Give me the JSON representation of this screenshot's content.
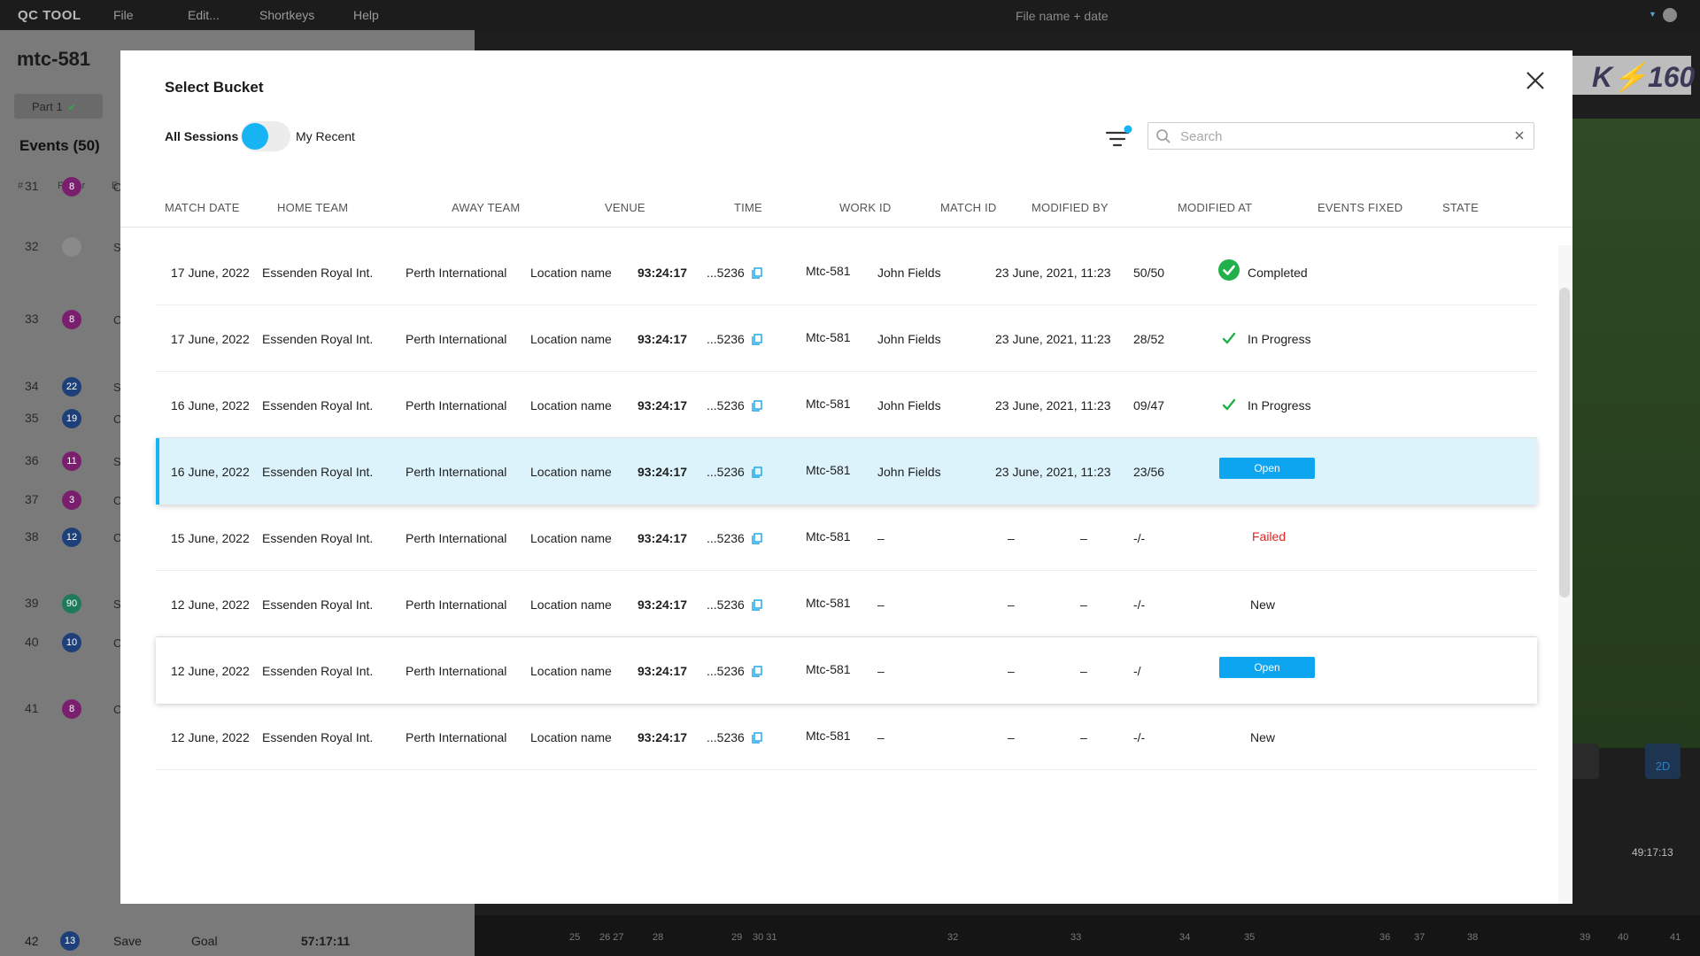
{
  "appbar": {
    "brand": "QC TOOL",
    "menu": [
      "File",
      "Edit...",
      "Shortkeys",
      "Help"
    ],
    "filename": "File name + date"
  },
  "left_panel": {
    "session_title": "mtc-581",
    "tab_label": "Part 1",
    "events_title": "Events (50)",
    "col_hash": "#",
    "col_player": "Player",
    "col_ev": "E",
    "events": [
      {
        "num": "31",
        "badge": "8",
        "color": "#7a1f6e",
        "stub": "C"
      },
      {
        "num": "32",
        "badge": "",
        "color": "#8a8a8a",
        "stub": "S"
      },
      {
        "num": "33",
        "badge": "8",
        "color": "#7a1f6e",
        "stub": "C"
      },
      {
        "num": "34",
        "badge": "22",
        "color": "#1d3f7a",
        "stub": "S"
      },
      {
        "num": "35",
        "badge": "19",
        "color": "#1d3f7a",
        "stub": "C"
      },
      {
        "num": "36",
        "badge": "11",
        "color": "#7a1f6e",
        "stub": "S"
      },
      {
        "num": "37",
        "badge": "3",
        "color": "#7a1f6e",
        "stub": "C"
      },
      {
        "num": "38",
        "badge": "12",
        "color": "#1d3f7a",
        "stub": "C"
      },
      {
        "num": "39",
        "badge": "90",
        "color": "#1f7a5a",
        "stub": "S"
      },
      {
        "num": "40",
        "badge": "10",
        "color": "#1d3f7a",
        "stub": "C"
      },
      {
        "num": "41",
        "badge": "8",
        "color": "#7a1f6e",
        "stub": "C"
      }
    ],
    "last_event": {
      "num": "42",
      "badge": "13",
      "color": "#1d3f7a",
      "type": "Save",
      "outcome": "Goal",
      "time": "57:17:11"
    }
  },
  "video": {
    "logo_text": "K⚡160",
    "timecode": "49:17:13",
    "timeline_ticks": [
      "25",
      "26 27",
      "28",
      "29",
      "30 31",
      "32",
      "33",
      "34",
      "35",
      "36",
      "37",
      "38",
      "39",
      "40",
      "41"
    ],
    "mode_label": "2D"
  },
  "modal": {
    "title": "Select Bucket",
    "toggle_left": "All Sessions",
    "toggle_right": "My Recent",
    "search_placeholder": "Search",
    "search_value": "",
    "accent": "#16b4f2",
    "columns": [
      "MATCH DATE",
      "HOME TEAM",
      "AWAY TEAM",
      "VENUE",
      "TIME",
      "WORK ID",
      "MATCH ID",
      "MODIFIED BY",
      "MODIFIED AT",
      "EVENTS FIXED",
      "STATE"
    ],
    "rows": [
      {
        "date": "17 June, 2022",
        "home": "Essenden Royal Int.",
        "away": "Perth International",
        "venue": "Location name",
        "time": "93:24:17",
        "work_id": "...5236",
        "match_id": "Mtc-581",
        "modified_by": "John Fields",
        "modified_at": "23 June, 2021, 11:23",
        "events_fixed": "50/50",
        "state": "Completed",
        "state_kind": "completed"
      },
      {
        "date": "17 June, 2022",
        "home": "Essenden Royal Int.",
        "away": "Perth International",
        "venue": "Location name",
        "time": "93:24:17",
        "work_id": "...5236",
        "match_id": "Mtc-581",
        "modified_by": "John Fields",
        "modified_at": "23 June, 2021, 11:23",
        "events_fixed": "28/52",
        "state": "In Progress",
        "state_kind": "progress"
      },
      {
        "date": "16 June, 2022",
        "home": "Essenden Royal Int.",
        "away": "Perth International",
        "venue": "Location name",
        "time": "93:24:17",
        "work_id": "...5236",
        "match_id": "Mtc-581",
        "modified_by": "John Fields",
        "modified_at": "23 June, 2021, 11:23",
        "events_fixed": "09/47",
        "state": "In Progress",
        "state_kind": "progress"
      },
      {
        "date": "16 June, 2022",
        "home": "Essenden Royal Int.",
        "away": "Perth International",
        "venue": "Location name",
        "time": "93:24:17",
        "work_id": "...5236",
        "match_id": "Mtc-581",
        "modified_by": "John Fields",
        "modified_at": "23 June, 2021, 11:23",
        "events_fixed": "23/56",
        "state": "Open",
        "state_kind": "open"
      },
      {
        "date": "15 June, 2022",
        "home": "Essenden Royal Int.",
        "away": "Perth International",
        "venue": "Location name",
        "time": "93:24:17",
        "work_id": "...5236",
        "match_id": "Mtc-581",
        "modified_by": "–",
        "modified_at": "–",
        "modified_at_2": "–",
        "events_fixed": "-/-",
        "state": "Failed",
        "state_kind": "failed"
      },
      {
        "date": "12 June, 2022",
        "home": "Essenden Royal Int.",
        "away": "Perth International",
        "venue": "Location name",
        "time": "93:24:17",
        "work_id": "...5236",
        "match_id": "Mtc-581",
        "modified_by": "–",
        "modified_at": "–",
        "modified_at_2": "–",
        "events_fixed": "-/-",
        "state": "New",
        "state_kind": "new"
      },
      {
        "date": "12 June, 2022",
        "home": "Essenden Royal Int.",
        "away": "Perth International",
        "venue": "Location name",
        "time": "93:24:17",
        "work_id": "...5236",
        "match_id": "Mtc-581",
        "modified_by": "–",
        "modified_at": "–",
        "modified_at_2": "–",
        "events_fixed": "-/",
        "state": "Open",
        "state_kind": "open"
      },
      {
        "date": "12 June, 2022",
        "home": "Essenden Royal Int.",
        "away": "Perth International",
        "venue": "Location name",
        "time": "93:24:17",
        "work_id": "...5236",
        "match_id": "Mtc-581",
        "modified_by": "–",
        "modified_at": "–",
        "modified_at_2": "–",
        "events_fixed": "-/-",
        "state": "New",
        "state_kind": "new"
      }
    ]
  }
}
